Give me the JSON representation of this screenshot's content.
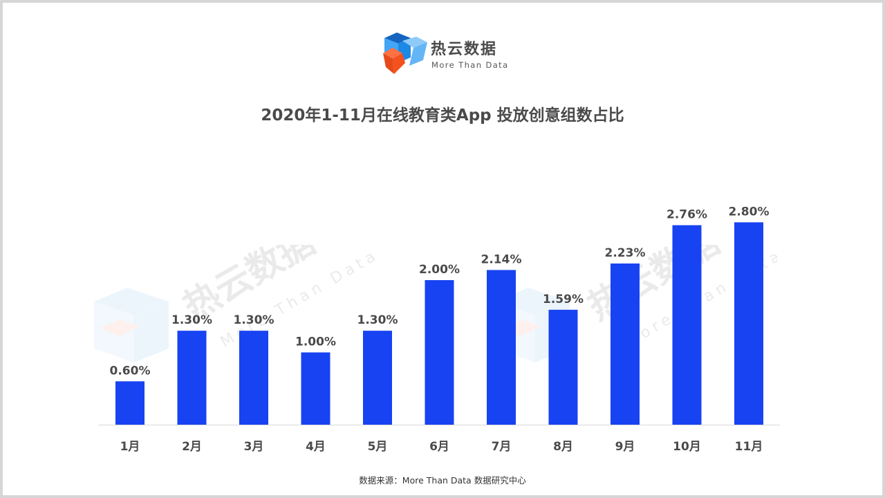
{
  "brand": {
    "name": "热云数据",
    "tagline": "More Than Data"
  },
  "watermark": {
    "name": "热云数据",
    "tagline": "More Than Data"
  },
  "source": "数据来源：More Than Data 数据研究中心",
  "colors": {
    "bar": "#1843f2",
    "label": "#4a4a4a",
    "axis": "#d9d9d9"
  },
  "chart_data": {
    "type": "bar",
    "title": "2020年1-11月在线教育类App 投放创意组数占比",
    "categories": [
      "1月",
      "2月",
      "3月",
      "4月",
      "5月",
      "6月",
      "7月",
      "8月",
      "9月",
      "10月",
      "11月"
    ],
    "values": [
      0.6,
      1.3,
      1.3,
      1.0,
      1.3,
      2.0,
      2.14,
      1.59,
      2.23,
      2.76,
      2.8
    ],
    "value_labels": [
      "0.60%",
      "1.30%",
      "1.30%",
      "1.00%",
      "1.30%",
      "2.00%",
      "2.14%",
      "1.59%",
      "2.23%",
      "2.76%",
      "2.80%"
    ],
    "unit": "%",
    "ylim": [
      0,
      3
    ],
    "grid": false,
    "legend": "none"
  }
}
